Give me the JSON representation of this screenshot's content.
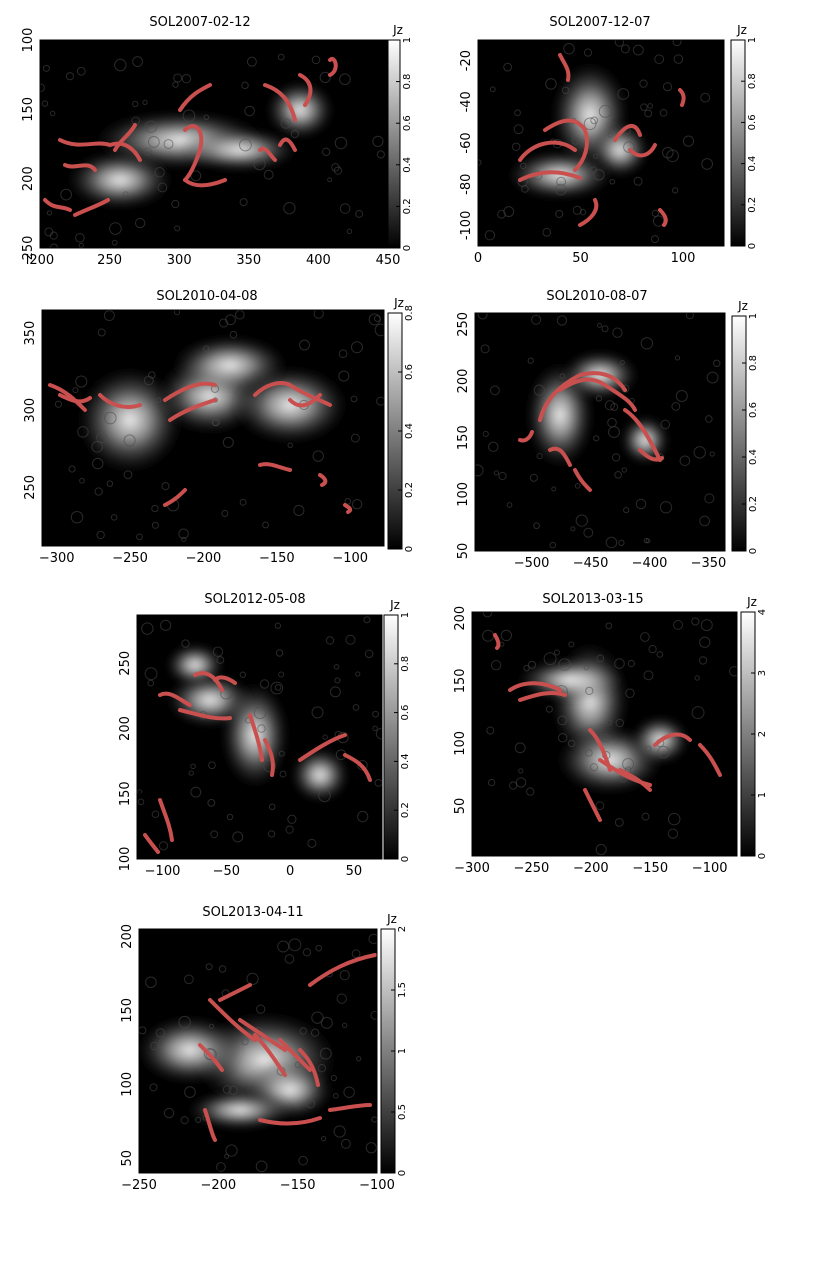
{
  "colorbar_label": "Jz",
  "colors": {
    "contour": "#c9504f",
    "background": "#000000"
  },
  "chart_data": [
    {
      "type": "heatmap",
      "title": "SOL2007-02-12",
      "xlim": [
        200,
        450
      ],
      "ylim": [
        250,
        100
      ],
      "x_ticks": [
        "l200",
        "250",
        "300",
        "350",
        "400",
        "450"
      ],
      "x_tick_values": [
        200,
        250,
        300,
        350,
        400,
        450
      ],
      "y_ticks": [
        "100",
        "150",
        "200",
        "250"
      ],
      "y_tick_values": [
        100,
        150,
        200,
        250
      ],
      "colorbar_ticks": [
        "0",
        "0.2",
        "0.4",
        "0.6",
        "0.8",
        "1"
      ],
      "colorbar_values": [
        0,
        0.2,
        0.4,
        0.6,
        0.8,
        1
      ],
      "grid": false
    },
    {
      "type": "heatmap",
      "title": "SOL2007-12-07",
      "xlim": [
        0,
        120
      ],
      "ylim": [
        -110,
        -10
      ],
      "x_ticks": [
        "0",
        "50",
        "100"
      ],
      "x_tick_values": [
        0,
        50,
        100
      ],
      "y_ticks": [
        "-20",
        "-40",
        "-60",
        "-80",
        "-100"
      ],
      "y_tick_values": [
        -20,
        -40,
        -60,
        -80,
        -100
      ],
      "colorbar_ticks": [
        "0",
        "0.2",
        "0.4",
        "0.6",
        "0.8",
        "1"
      ],
      "colorbar_values": [
        0,
        0.2,
        0.4,
        0.6,
        0.8,
        1
      ],
      "grid": false
    },
    {
      "type": "heatmap",
      "title": "SOL2010-04-08",
      "xlim": [
        -310,
        -77
      ],
      "ylim": [
        212,
        365
      ],
      "x_ticks": [
        "−300",
        "−250",
        "−200",
        "−150",
        "−100"
      ],
      "x_tick_values": [
        -300,
        -250,
        -200,
        -150,
        -100
      ],
      "y_ticks": [
        "250",
        "300",
        "350"
      ],
      "y_tick_values": [
        250,
        300,
        350
      ],
      "colorbar_ticks": [
        "0",
        "0.2",
        "0.4",
        "0.6",
        "0.8"
      ],
      "colorbar_values": [
        0,
        0.2,
        0.4,
        0.6,
        0.8
      ],
      "grid": false
    },
    {
      "type": "heatmap",
      "title": "SOL2010-08-07",
      "xlim": [
        -548,
        -336
      ],
      "ylim": [
        50,
        260
      ],
      "x_ticks": [
        "−500",
        "−450",
        "−400",
        "−350"
      ],
      "x_tick_values": [
        -500,
        -450,
        -400,
        -350
      ],
      "y_ticks": [
        "50",
        "100",
        "150",
        "200",
        "250"
      ],
      "y_tick_values": [
        50,
        100,
        150,
        200,
        250
      ],
      "colorbar_ticks": [
        "0",
        "0.2",
        "0.4",
        "0.6",
        "0.8",
        "1"
      ],
      "colorbar_values": [
        0,
        0.2,
        0.4,
        0.6,
        0.8,
        1
      ],
      "grid": false
    },
    {
      "type": "heatmap",
      "title": "SOL2012-05-08",
      "xlim": [
        -120,
        72
      ],
      "ylim": [
        100,
        287
      ],
      "x_ticks": [
        "−100",
        "−50",
        "0",
        "50"
      ],
      "x_tick_values": [
        -100,
        -50,
        0,
        50
      ],
      "y_ticks": [
        "100",
        "150",
        "200",
        "250"
      ],
      "y_tick_values": [
        100,
        150,
        200,
        250
      ],
      "colorbar_ticks": [
        "0",
        "0.2",
        "0.4",
        "0.6",
        "0.8",
        "1"
      ],
      "colorbar_values": [
        0,
        0.2,
        0.4,
        0.6,
        0.8,
        1
      ],
      "grid": false
    },
    {
      "type": "heatmap",
      "title": "SOL2013-03-15",
      "xlim": [
        -300,
        -77
      ],
      "ylim": [
        10,
        205
      ],
      "x_ticks": [
        "−300",
        "−250",
        "−200",
        "−150",
        "−100"
      ],
      "x_tick_values": [
        -300,
        -250,
        -200,
        -150,
        -100
      ],
      "y_ticks": [
        "50",
        "100",
        "150",
        "200"
      ],
      "y_tick_values": [
        50,
        100,
        150,
        200
      ],
      "colorbar_ticks": [
        "0",
        "1",
        "2",
        "3",
        "4"
      ],
      "colorbar_values": [
        0,
        1,
        2,
        3,
        4
      ],
      "grid": false
    },
    {
      "type": "heatmap",
      "title": "SOL2013-04-11",
      "xlim": [
        -250,
        -100
      ],
      "ylim": [
        40,
        205
      ],
      "x_ticks": [
        "−250",
        "−200",
        "−150",
        "−100"
      ],
      "x_tick_values": [
        -250,
        -200,
        -150,
        -100
      ],
      "y_ticks": [
        "50",
        "100",
        "150",
        "200"
      ],
      "y_tick_values": [
        50,
        100,
        150,
        200
      ],
      "colorbar_ticks": [
        "0",
        "0.5",
        "1",
        "1.5",
        "2"
      ],
      "colorbar_values": [
        0,
        0.5,
        1,
        1.5,
        2
      ],
      "grid": false
    }
  ]
}
